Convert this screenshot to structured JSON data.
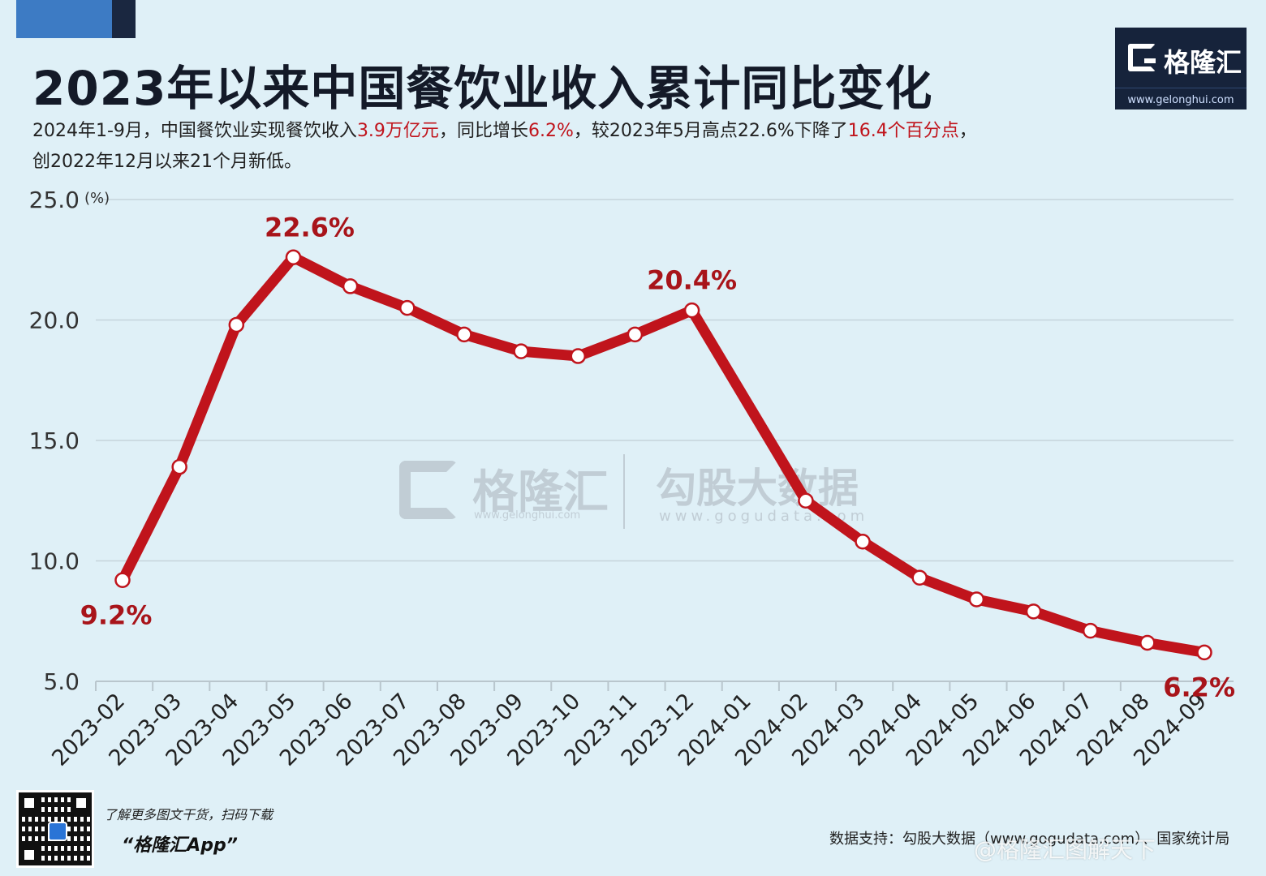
{
  "header": {
    "title": "2023年以来中国餐饮业收入累计同比变化",
    "subtitle": {
      "line1_a": "2024年1-9月，中国餐饮业实现餐饮收入",
      "line1_hl1": "3.9万亿元",
      "line1_b": "，同比增长",
      "line1_hl2": "6.2%",
      "line1_c": "，较2023年5月高点22.6%下降了",
      "line1_hl3": "16.4个百分点",
      "line1_d": "，",
      "line2": "创2022年12月以来21个月新低。"
    }
  },
  "logo": {
    "name": "格隆汇",
    "url": "www.gelonghui.com"
  },
  "watermark": {
    "name1": "格隆汇",
    "url1": "www.gelonghui.com",
    "name2": "勾股大数据",
    "url2": "www.gogudata.com"
  },
  "footer": {
    "qr_note": "了解更多图文干货，扫码下载",
    "app_name": "“格隆汇App”",
    "source": "数据支持：勾股大数据（www.gogudata.com）、国家统计局",
    "weibo": "@格隆汇图解天下"
  },
  "colors": {
    "line": "#c0141c",
    "label": "#a8141a",
    "grid": "#c6d4dc",
    "background": "#dff0f7"
  },
  "chart_data": {
    "type": "line",
    "ylabel": "(%)",
    "ylim": [
      5,
      25
    ],
    "yticks": [
      "5.0",
      "10.0",
      "15.0",
      "20.0",
      "25.0"
    ],
    "grid": true,
    "categories": [
      "2023-02",
      "2023-03",
      "2023-04",
      "2023-05",
      "2023-06",
      "2023-07",
      "2023-08",
      "2023-09",
      "2023-10",
      "2023-11",
      "2023-12",
      "2024-01",
      "2024-02",
      "2024-03",
      "2024-04",
      "2024-05",
      "2024-06",
      "2024-07",
      "2024-08",
      "2024-09"
    ],
    "series": [
      {
        "values": [
          9.2,
          13.9,
          19.8,
          22.6,
          21.4,
          20.5,
          19.4,
          18.7,
          18.5,
          19.4,
          20.4,
          null,
          12.5,
          10.8,
          9.3,
          8.4,
          7.9,
          7.1,
          6.6,
          6.2
        ]
      }
    ],
    "annotations": [
      {
        "index": 0,
        "text": "9.2%",
        "position": "below"
      },
      {
        "index": 3,
        "text": "22.6%",
        "position": "above"
      },
      {
        "index": 10,
        "text": "20.4%",
        "position": "above"
      },
      {
        "index": 19,
        "text": "6.2%",
        "position": "below"
      }
    ]
  }
}
